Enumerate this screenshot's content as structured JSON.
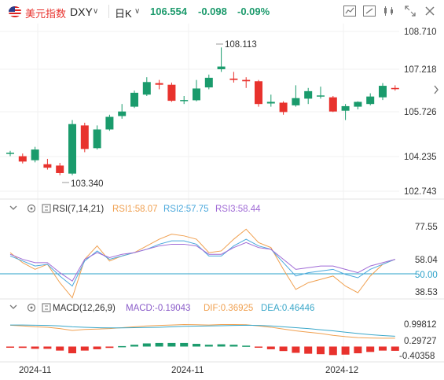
{
  "header": {
    "name": "美元指数",
    "symbol": "DXY",
    "period": "日K",
    "price": "106.554",
    "change": "-0.098",
    "change_pct": "-0.09%",
    "toolbar_icons": [
      "indicator-icon",
      "draw-tool-icon",
      "compare-icon",
      "fullscreen-icon",
      "close-icon"
    ]
  },
  "colors": {
    "up": "#1a9b6c",
    "down": "#e8322d",
    "rsi1": "#f0a050",
    "rsi2": "#4aa8dc",
    "rsi3": "#a06bd6",
    "macd": "#8a5cc9",
    "dif": "#f0a050",
    "dea": "#3aa7c9",
    "level50": "#2aa0c8"
  },
  "price_axis": [
    "108.710",
    "107.218",
    "105.726",
    "104.235",
    "102.743"
  ],
  "markers": {
    "high": "108.113",
    "low": "103.340"
  },
  "rsi": {
    "title": "RSI(7,14,21)",
    "rsi1": "RSI1:58.07",
    "rsi2": "RSI2:57.75",
    "rsi3": "RSI3:58.44",
    "axis": [
      "77.55",
      "58.04",
      "50.00",
      "38.53"
    ]
  },
  "macd": {
    "title": "MACD(12,26,9)",
    "macd": "MACD:-0.19043",
    "dif": "DIF:0.36925",
    "dea": "DEA:0.46446",
    "axis": [
      "0.99812",
      "0.29727",
      "-0.40358"
    ]
  },
  "date_axis": [
    "2024-11",
    "2024-11",
    "2024-12"
  ],
  "chart_data": {
    "type": "candlestick",
    "ylim": [
      102.743,
      108.71
    ],
    "candles": [
      {
        "o": 104.15,
        "h": 104.25,
        "l": 104.05,
        "c": 104.18
      },
      {
        "o": 104.05,
        "h": 104.15,
        "l": 103.78,
        "c": 103.85
      },
      {
        "o": 103.9,
        "h": 104.4,
        "l": 103.82,
        "c": 104.3
      },
      {
        "o": 103.75,
        "h": 103.95,
        "l": 103.55,
        "c": 103.62
      },
      {
        "o": 103.7,
        "h": 103.8,
        "l": 103.34,
        "c": 103.42
      },
      {
        "o": 103.4,
        "h": 105.4,
        "l": 103.34,
        "c": 105.25
      },
      {
        "o": 105.2,
        "h": 105.3,
        "l": 104.2,
        "c": 104.32
      },
      {
        "o": 104.35,
        "h": 105.2,
        "l": 104.3,
        "c": 105.05
      },
      {
        "o": 105.05,
        "h": 105.6,
        "l": 105.0,
        "c": 105.52
      },
      {
        "o": 105.55,
        "h": 106.0,
        "l": 105.45,
        "c": 105.72
      },
      {
        "o": 105.9,
        "h": 106.5,
        "l": 105.85,
        "c": 106.42
      },
      {
        "o": 106.35,
        "h": 107.0,
        "l": 106.3,
        "c": 106.82
      },
      {
        "o": 106.78,
        "h": 106.9,
        "l": 106.55,
        "c": 106.72
      },
      {
        "o": 106.72,
        "h": 106.8,
        "l": 106.08,
        "c": 106.12
      },
      {
        "o": 106.12,
        "h": 106.3,
        "l": 106.0,
        "c": 106.15
      },
      {
        "o": 106.14,
        "h": 106.9,
        "l": 106.1,
        "c": 106.58
      },
      {
        "o": 106.62,
        "h": 107.1,
        "l": 106.55,
        "c": 106.98
      },
      {
        "o": 107.3,
        "h": 108.113,
        "l": 107.2,
        "c": 107.4
      },
      {
        "o": 106.95,
        "h": 107.2,
        "l": 106.8,
        "c": 106.9
      },
      {
        "o": 106.9,
        "h": 107.0,
        "l": 106.6,
        "c": 106.85
      },
      {
        "o": 106.85,
        "h": 106.9,
        "l": 105.9,
        "c": 106.0
      },
      {
        "o": 106.02,
        "h": 106.35,
        "l": 105.9,
        "c": 106.08
      },
      {
        "o": 106.05,
        "h": 106.1,
        "l": 105.6,
        "c": 105.7
      },
      {
        "o": 105.95,
        "h": 106.7,
        "l": 105.9,
        "c": 106.22
      },
      {
        "o": 106.2,
        "h": 106.6,
        "l": 106.0,
        "c": 106.48
      },
      {
        "o": 106.3,
        "h": 106.65,
        "l": 106.2,
        "c": 106.32
      },
      {
        "o": 106.25,
        "h": 106.3,
        "l": 105.7,
        "c": 105.72
      },
      {
        "o": 105.75,
        "h": 106.0,
        "l": 105.4,
        "c": 105.92
      },
      {
        "o": 105.9,
        "h": 106.1,
        "l": 105.8,
        "c": 106.08
      },
      {
        "o": 106.0,
        "h": 106.4,
        "l": 105.95,
        "c": 106.28
      },
      {
        "o": 106.25,
        "h": 106.78,
        "l": 106.15,
        "c": 106.68
      },
      {
        "o": 106.6,
        "h": 106.7,
        "l": 106.5,
        "c": 106.554
      }
    ],
    "rsi_series": {
      "rsi1": [
        62,
        56,
        52,
        55,
        44,
        35,
        58,
        66,
        57,
        60,
        62,
        66,
        70,
        73,
        72,
        70,
        62,
        63,
        70,
        76,
        68,
        65,
        52,
        40,
        44,
        46,
        48,
        42,
        38,
        48,
        55,
        58
      ],
      "rsi2": [
        60,
        57,
        54,
        55,
        48,
        42,
        57,
        63,
        58,
        60,
        62,
        64,
        67,
        69,
        69,
        67,
        60,
        60,
        66,
        70,
        66,
        64,
        56,
        48,
        50,
        51,
        52,
        49,
        47,
        52,
        55,
        58
      ],
      "rsi3": [
        61,
        58,
        56,
        56,
        50,
        45,
        58,
        62,
        59,
        61,
        62,
        64,
        66,
        67,
        67,
        66,
        61,
        61,
        65,
        68,
        65,
        64,
        58,
        52,
        53,
        54,
        54,
        52,
        50,
        54,
        56,
        58
      ]
    },
    "macd_series": {
      "dif": [
        0.95,
        0.92,
        0.88,
        0.86,
        0.8,
        0.72,
        0.76,
        0.78,
        0.8,
        0.84,
        0.88,
        0.92,
        0.94,
        0.96,
        0.98,
        0.97,
        0.96,
        0.98,
        0.98,
        0.97,
        0.92,
        0.86,
        0.78,
        0.7,
        0.64,
        0.58,
        0.5,
        0.44,
        0.4,
        0.38,
        0.37,
        0.37
      ],
      "dea": [
        0.96,
        0.96,
        0.95,
        0.94,
        0.92,
        0.88,
        0.86,
        0.84,
        0.83,
        0.83,
        0.84,
        0.85,
        0.86,
        0.88,
        0.9,
        0.91,
        0.92,
        0.93,
        0.94,
        0.95,
        0.94,
        0.92,
        0.88,
        0.84,
        0.8,
        0.75,
        0.7,
        0.64,
        0.58,
        0.53,
        0.49,
        0.46
      ],
      "hist": [
        -0.02,
        -0.06,
        -0.1,
        -0.1,
        -0.18,
        -0.3,
        -0.18,
        -0.12,
        -0.06,
        0.02,
        0.08,
        0.14,
        0.16,
        0.16,
        0.16,
        0.12,
        0.08,
        0.1,
        0.08,
        0.04,
        -0.04,
        -0.12,
        -0.2,
        -0.28,
        -0.32,
        -0.34,
        -0.38,
        -0.36,
        -0.3,
        -0.24,
        -0.18,
        -0.19
      ]
    }
  }
}
